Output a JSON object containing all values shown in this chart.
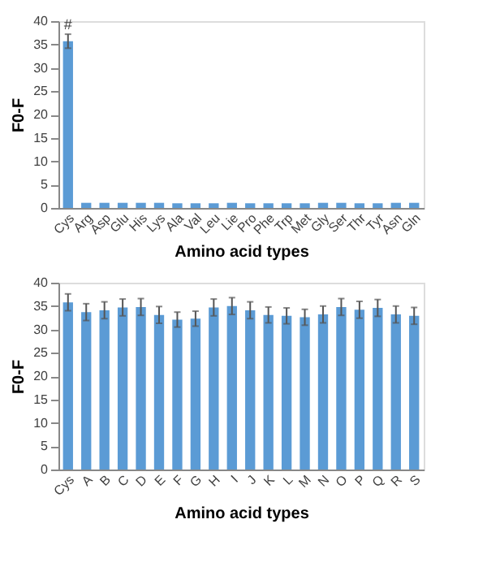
{
  "chart_data": [
    {
      "type": "bar",
      "xlabel": "Amino acid types",
      "ylabel": "F0-F",
      "categories": [
        "Cys",
        "Arg",
        "Asp",
        "Glu",
        "His",
        "Lys",
        "Ala",
        "Val",
        "Leu",
        "Lie",
        "Pro",
        "Phe",
        "Trp",
        "Met",
        "Gly",
        "Ser",
        "Thr",
        "Tyr",
        "Asn",
        "Gln"
      ],
      "series": [
        {
          "color": "#5b9bd5",
          "values": [
            35.7,
            1.1,
            1.1,
            1.1,
            1.1,
            1.1,
            1.0,
            1.0,
            1.0,
            1.1,
            1.0,
            1.0,
            1.0,
            1.0,
            1.1,
            1.1,
            1.0,
            1.0,
            1.1,
            1.1
          ],
          "errors": [
            1.5,
            null,
            null,
            null,
            null,
            null,
            null,
            null,
            null,
            null,
            null,
            null,
            null,
            null,
            null,
            null,
            null,
            null,
            null,
            null
          ]
        }
      ],
      "ylim": [
        0,
        40
      ],
      "yticks": [
        0,
        5,
        10,
        15,
        20,
        25,
        30,
        35,
        40
      ],
      "grid": false,
      "annotations": [
        {
          "text": "#",
          "x": "Cys",
          "y": 37.5
        }
      ]
    },
    {
      "type": "bar",
      "xlabel": "Amino acid types",
      "ylabel": "F0-F",
      "categories": [
        "Cys",
        "A",
        "B",
        "C",
        "D",
        "E",
        "F",
        "G",
        "H",
        "I",
        "J",
        "K",
        "L",
        "M",
        "N",
        "O",
        "P",
        "Q",
        "R",
        "S"
      ],
      "series": [
        {
          "color": "#5b9bd5",
          "values": [
            35.8,
            33.7,
            34.1,
            34.7,
            34.8,
            33.1,
            32.1,
            32.3,
            34.7,
            35.0,
            34.1,
            33.1,
            32.9,
            32.6,
            33.2,
            34.8,
            34.2,
            34.6,
            33.2,
            32.9
          ],
          "errors": [
            1.8,
            1.8,
            1.8,
            1.8,
            1.8,
            1.8,
            1.6,
            1.6,
            1.8,
            1.8,
            1.8,
            1.7,
            1.7,
            1.7,
            1.8,
            1.8,
            1.8,
            1.8,
            1.8,
            1.8
          ]
        }
      ],
      "ylim": [
        0,
        40
      ],
      "yticks": [
        0,
        5,
        10,
        15,
        20,
        25,
        30,
        35,
        40
      ],
      "grid": false
    }
  ]
}
